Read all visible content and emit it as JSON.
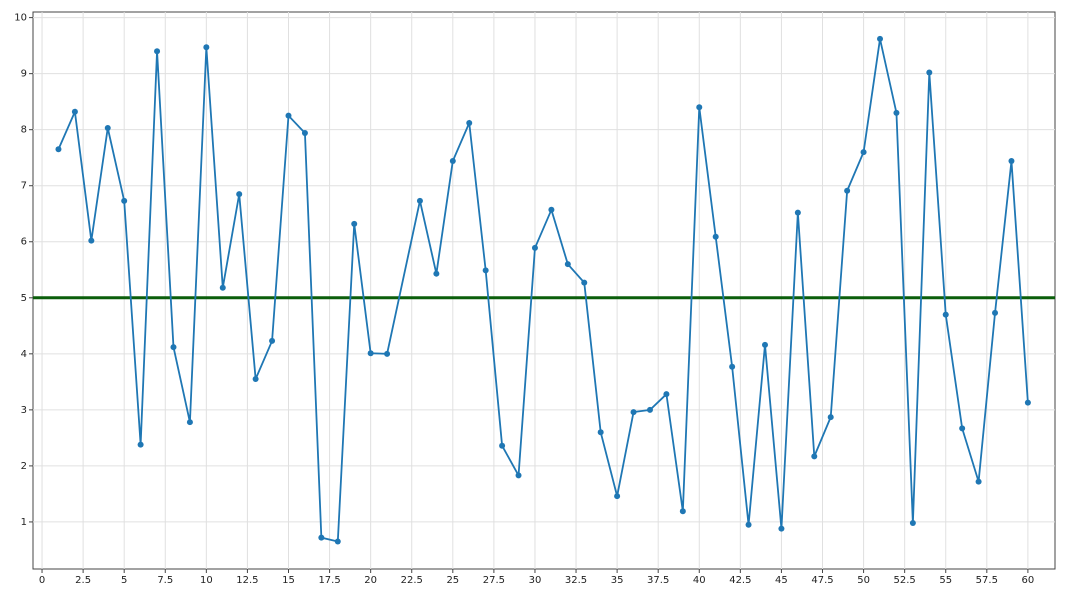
{
  "chart_data": {
    "type": "line",
    "x": [
      1,
      2,
      3,
      4,
      5,
      6,
      7,
      8,
      9,
      10,
      11,
      12,
      13,
      14,
      15,
      16,
      17,
      18,
      19,
      20,
      21,
      23,
      24,
      25,
      26,
      27,
      28,
      29,
      30,
      31,
      32,
      33,
      34,
      35,
      36,
      37,
      38,
      39,
      40,
      41,
      42,
      43,
      44,
      45,
      46,
      47,
      48,
      49,
      50,
      51,
      52,
      53,
      54,
      55,
      56,
      57,
      58,
      59,
      60
    ],
    "series": [
      {
        "color": "#1f77b4",
        "values": [
          7.65,
          8.32,
          6.02,
          8.03,
          6.73,
          2.38,
          9.4,
          4.12,
          2.78,
          9.47,
          5.18,
          6.85,
          3.55,
          4.23,
          8.25,
          7.94,
          0.72,
          0.65,
          6.32,
          4.01,
          4.0,
          6.73,
          5.43,
          7.44,
          8.12,
          5.49,
          2.36,
          1.83,
          5.89,
          6.57,
          5.6,
          5.27,
          2.6,
          1.46,
          2.96,
          3.0,
          3.28,
          1.19,
          8.4,
          6.09,
          3.77,
          0.95,
          4.16,
          0.88,
          6.52,
          2.17,
          2.87,
          6.91,
          7.6,
          9.62,
          8.3,
          0.98,
          9.02,
          4.7,
          2.67,
          1.72,
          4.73,
          7.44,
          3.13
        ]
      }
    ],
    "reference_line": 5,
    "reference_color": "#0b5e0b",
    "xlim": [
      -0.55,
      61.65
    ],
    "ylim": [
      0.16,
      10.1
    ],
    "xticks": [
      0,
      2.5,
      5,
      7.5,
      10,
      12.5,
      15,
      17.5,
      20,
      22.5,
      25,
      27.5,
      30,
      32.5,
      35,
      37.5,
      40,
      42.5,
      45,
      47.5,
      50,
      52.5,
      55,
      57.5,
      60
    ],
    "yticks": [
      1,
      2,
      3,
      4,
      5,
      6,
      7,
      8,
      9,
      10
    ],
    "grid": true
  }
}
